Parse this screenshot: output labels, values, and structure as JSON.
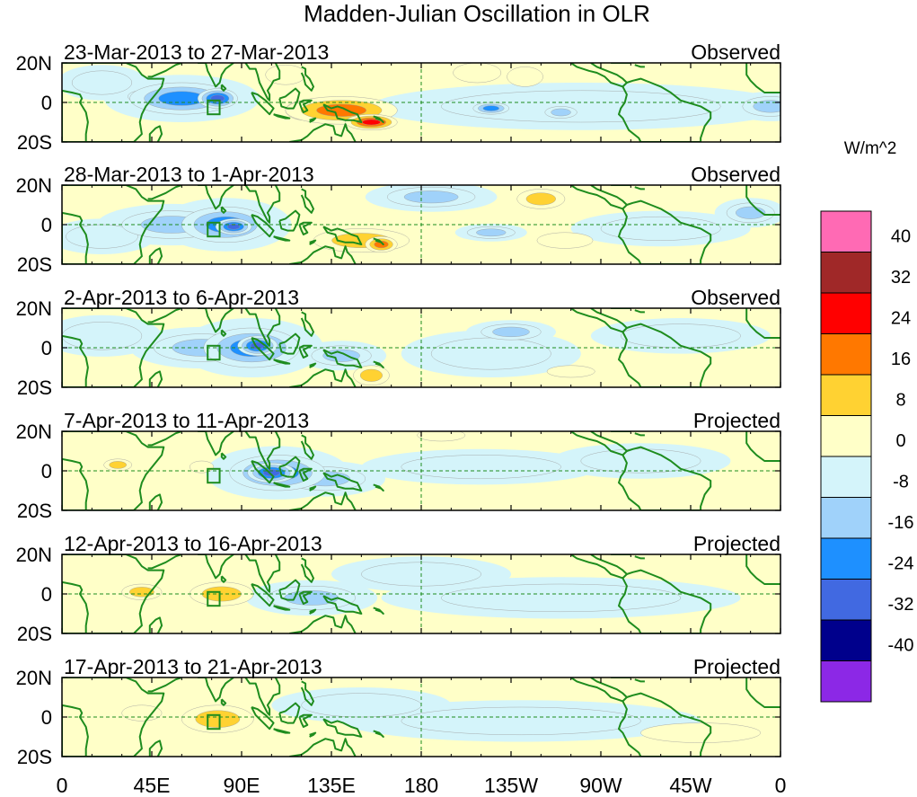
{
  "chart_data": {
    "type": "heatmap",
    "title": "Madden-Julian Oscillation in OLR",
    "units_label": "W/m^2",
    "x_ticks": [
      "0",
      "45E",
      "90E",
      "135E",
      "180",
      "135W",
      "90W",
      "45W",
      "0"
    ],
    "y_ticks": [
      "20N",
      "0",
      "20S"
    ],
    "lat_range": [
      -20,
      20
    ],
    "lon_range": [
      0,
      360
    ],
    "colorbar": {
      "labels": [
        "40",
        "32",
        "24",
        "16",
        "8",
        "0",
        "-8",
        "-16",
        "-24",
        "-32",
        "-40"
      ],
      "colors": [
        "#ff6ab4",
        "#a02828",
        "#ff0000",
        "#ff7800",
        "#ffd232",
        "#ffffc8",
        "#d4f4fa",
        "#a0d2fa",
        "#1e90ff",
        "#4169e1",
        "#00008c",
        "#8c28e6"
      ]
    },
    "panels": [
      {
        "period": "23-Mar-2013 to 27-Mar-2013",
        "status": "Observed",
        "anomalies": [
          {
            "lon": 140,
            "lat": -4,
            "rlon": 28,
            "rlat": 7,
            "v": 24
          },
          {
            "lon": 155,
            "lat": -10,
            "rlon": 13,
            "rlat": 4,
            "v": 28
          },
          {
            "lon": 122,
            "lat": -4,
            "rlon": 10,
            "rlat": 5,
            "v": 16
          },
          {
            "lon": 60,
            "lat": 2,
            "rlon": 26,
            "rlat": 8,
            "v": -20
          },
          {
            "lon": 78,
            "lat": 2,
            "rlon": 10,
            "rlat": 5,
            "v": -26
          },
          {
            "lon": 40,
            "lat": 3,
            "rlon": 7,
            "rlat": 3,
            "v": -15
          },
          {
            "lon": 215,
            "lat": -3,
            "rlon": 9,
            "rlat": 3,
            "v": -18
          },
          {
            "lon": 260,
            "lat": -2,
            "rlon": 70,
            "rlat": 8,
            "v": -6
          },
          {
            "lon": 250,
            "lat": -5,
            "rlon": 8,
            "rlat": 3,
            "v": -12
          },
          {
            "lon": 232,
            "lat": 13,
            "rlon": 9,
            "rlat": 5,
            "v": 8
          },
          {
            "lon": 208,
            "lat": 15,
            "rlon": 12,
            "rlat": 5,
            "v": 5
          },
          {
            "lon": 355,
            "lat": -2,
            "rlon": 14,
            "rlat": 5,
            "v": -14
          },
          {
            "lon": 112,
            "lat": 14,
            "rlon": 10,
            "rlat": 5,
            "v": 6
          },
          {
            "lon": 20,
            "lat": 10,
            "rlon": 15,
            "rlat": 6,
            "v": -6
          }
        ]
      },
      {
        "period": "28-Mar-2013 to 1-Apr-2013",
        "status": "Observed",
        "anomalies": [
          {
            "lon": 82,
            "lat": 0,
            "rlon": 22,
            "rlat": 9,
            "v": -24
          },
          {
            "lon": 86,
            "lat": -1,
            "rlon": 9,
            "rlat": 4,
            "v": -30
          },
          {
            "lon": 55,
            "lat": 0,
            "rlon": 25,
            "rlat": 7,
            "v": -12
          },
          {
            "lon": 150,
            "lat": -8,
            "rlon": 24,
            "rlat": 6,
            "v": 13
          },
          {
            "lon": 160,
            "lat": -10,
            "rlon": 8,
            "rlat": 4,
            "v": 20
          },
          {
            "lon": 185,
            "lat": 14,
            "rlon": 22,
            "rlat": 5,
            "v": -10
          },
          {
            "lon": 240,
            "lat": 13,
            "rlon": 12,
            "rlat": 5,
            "v": 9
          },
          {
            "lon": 252,
            "lat": -8,
            "rlon": 14,
            "rlat": 4,
            "v": 8
          },
          {
            "lon": 215,
            "lat": -4,
            "rlon": 12,
            "rlat": 3,
            "v": -15
          },
          {
            "lon": 345,
            "lat": 6,
            "rlon": 12,
            "rlat": 5,
            "v": -12
          },
          {
            "lon": 300,
            "lat": -2,
            "rlon": 30,
            "rlat": 6,
            "v": -6
          },
          {
            "lon": 20,
            "lat": -6,
            "rlon": 18,
            "rlat": 6,
            "v": -6
          }
        ]
      },
      {
        "period": "2-Apr-2013 to 6-Apr-2013",
        "status": "Observed",
        "anomalies": [
          {
            "lon": 95,
            "lat": 0,
            "rlon": 24,
            "rlat": 10,
            "v": -24
          },
          {
            "lon": 98,
            "lat": 1,
            "rlon": 10,
            "rlat": 5,
            "v": -30
          },
          {
            "lon": 70,
            "lat": 0,
            "rlon": 24,
            "rlat": 7,
            "v": -12
          },
          {
            "lon": 140,
            "lat": -4,
            "rlon": 15,
            "rlat": 5,
            "v": -12
          },
          {
            "lon": 155,
            "lat": -14,
            "rlon": 9,
            "rlat": 5,
            "v": 12
          },
          {
            "lon": 225,
            "lat": 8,
            "rlon": 15,
            "rlat": 4,
            "v": -14
          },
          {
            "lon": 215,
            "lat": -3,
            "rlon": 30,
            "rlat": 8,
            "v": -6
          },
          {
            "lon": 255,
            "lat": -12,
            "rlon": 12,
            "rlat": 3,
            "v": 8
          },
          {
            "lon": 310,
            "lat": 6,
            "rlon": 30,
            "rlat": 6,
            "v": -5
          },
          {
            "lon": 20,
            "lat": 6,
            "rlon": 20,
            "rlat": 7,
            "v": -6
          }
        ]
      },
      {
        "period": "7-Apr-2013 to 11-Apr-2013",
        "status": "Projected",
        "anomalies": [
          {
            "lon": 108,
            "lat": -1,
            "rlon": 24,
            "rlat": 9,
            "v": -22
          },
          {
            "lon": 105,
            "lat": -1,
            "rlon": 12,
            "rlat": 5,
            "v": -28
          },
          {
            "lon": 132,
            "lat": -4,
            "rlon": 20,
            "rlat": 6,
            "v": -12
          },
          {
            "lon": 28,
            "lat": 3,
            "rlon": 7,
            "rlat": 3,
            "v": 9
          },
          {
            "lon": 70,
            "lat": 2,
            "rlon": 6,
            "rlat": 3,
            "v": 8
          },
          {
            "lon": 210,
            "lat": 2,
            "rlon": 40,
            "rlat": 6,
            "v": -6
          },
          {
            "lon": 290,
            "lat": 5,
            "rlon": 30,
            "rlat": 6,
            "v": -5
          },
          {
            "lon": 190,
            "lat": 18,
            "rlon": 12,
            "rlat": 3,
            "v": 8
          }
        ]
      },
      {
        "period": "12-Apr-2013 to 16-Apr-2013",
        "status": "Projected",
        "anomalies": [
          {
            "lon": 80,
            "lat": 0,
            "rlon": 16,
            "rlat": 6,
            "v": 9
          },
          {
            "lon": 40,
            "lat": 1,
            "rlon": 10,
            "rlat": 4,
            "v": 9
          },
          {
            "lon": 125,
            "lat": -2,
            "rlon": 22,
            "rlat": 6,
            "v": -10
          },
          {
            "lon": 180,
            "lat": 10,
            "rlon": 30,
            "rlat": 6,
            "v": -6
          },
          {
            "lon": 250,
            "lat": -2,
            "rlon": 60,
            "rlat": 7,
            "v": -5
          }
        ]
      },
      {
        "period": "17-Apr-2013 to 21-Apr-2013",
        "status": "Projected",
        "anomalies": [
          {
            "lon": 78,
            "lat": -1,
            "rlon": 18,
            "rlat": 7,
            "v": 9
          },
          {
            "lon": 40,
            "lat": 2,
            "rlon": 10,
            "rlat": 4,
            "v": 8
          },
          {
            "lon": 150,
            "lat": 6,
            "rlon": 30,
            "rlat": 6,
            "v": -6
          },
          {
            "lon": 230,
            "lat": -2,
            "rlon": 60,
            "rlat": 7,
            "v": -5
          },
          {
            "lon": 320,
            "lat": -8,
            "rlon": 30,
            "rlat": 5,
            "v": 4
          }
        ]
      }
    ]
  }
}
